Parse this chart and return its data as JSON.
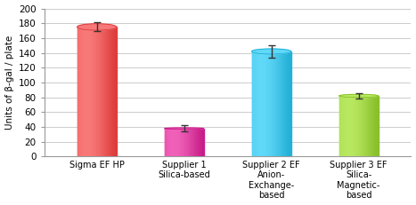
{
  "categories": [
    "Sigma EF HP",
    "Supplier 1\nSilica-based",
    "Supplier 2 EF\nAnion-\nExchange-\nbased",
    "Supplier 3 EF\nSilica-\nMagnetic-\nbased"
  ],
  "values": [
    175,
    38,
    142,
    82
  ],
  "errors": [
    6,
    4,
    8,
    4
  ],
  "bar_colors_light": [
    "#f87878",
    "#f060b8",
    "#60d8f8",
    "#b8e860"
  ],
  "bar_colors_dark": [
    "#d83030",
    "#c01080",
    "#18a8d0",
    "#80b820"
  ],
  "bar_colors_mid": [
    "#f05050",
    "#e040a0",
    "#38c0e8",
    "#a8d840"
  ],
  "ylabel": "Units of β-gal / plate",
  "ylim": [
    0,
    200
  ],
  "yticks": [
    0,
    20,
    40,
    60,
    80,
    100,
    120,
    140,
    160,
    180,
    200
  ],
  "grid_color": "#cccccc",
  "background_color": "#ffffff",
  "bar_width": 0.45,
  "figsize": [
    4.67,
    2.31
  ],
  "dpi": 100,
  "xlabel_fontsize": 7,
  "ylabel_fontsize": 7.5
}
